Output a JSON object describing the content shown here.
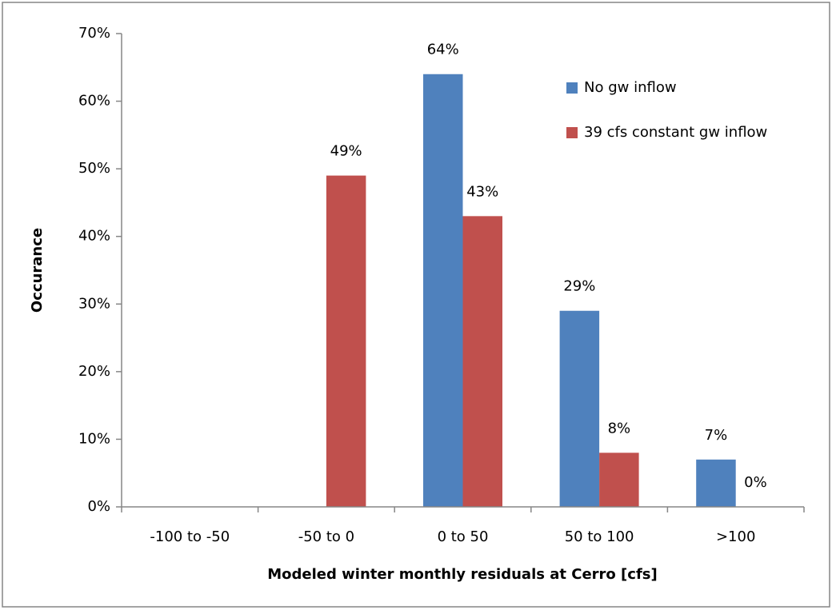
{
  "chart_data": {
    "type": "bar",
    "x_label": "Modeled winter monthly residuals at Cerro [cfs]",
    "y_label": "Occurance",
    "categories": [
      "-100 to -50",
      "-50 to 0",
      "0 to 50",
      "50 to 100",
      ">100"
    ],
    "series": [
      {
        "name": "No gw inflow",
        "color": "#4f81bd",
        "values": [
          null,
          null,
          64,
          29,
          7
        ],
        "value_labels": [
          null,
          null,
          "64%",
          "29%",
          "7%"
        ]
      },
      {
        "name": "39 cfs constant gw inflow",
        "color": "#c0504d",
        "values": [
          null,
          49,
          43,
          8,
          0
        ],
        "value_labels": [
          null,
          "49%",
          "43%",
          "8%",
          "0%"
        ]
      }
    ],
    "ylim": [
      0,
      70
    ],
    "yticks": [
      {
        "value": 0,
        "label": "0%"
      },
      {
        "value": 10,
        "label": "10%"
      },
      {
        "value": 20,
        "label": "20%"
      },
      {
        "value": 30,
        "label": "30%"
      },
      {
        "value": 40,
        "label": "40%"
      },
      {
        "value": 50,
        "label": "50%"
      },
      {
        "value": 60,
        "label": "60%"
      },
      {
        "value": 70,
        "label": "70%"
      }
    ],
    "grid": false,
    "legend": "top-right"
  }
}
